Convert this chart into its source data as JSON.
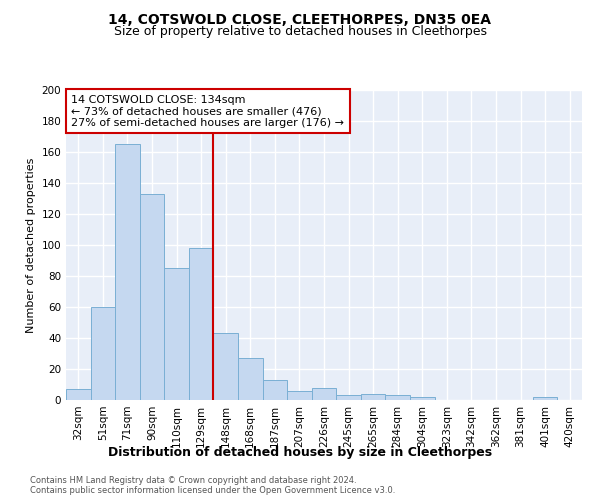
{
  "title": "14, COTSWOLD CLOSE, CLEETHORPES, DN35 0EA",
  "subtitle": "Size of property relative to detached houses in Cleethorpes",
  "xlabel": "Distribution of detached houses by size in Cleethorpes",
  "ylabel": "Number of detached properties",
  "categories": [
    "32sqm",
    "51sqm",
    "71sqm",
    "90sqm",
    "110sqm",
    "129sqm",
    "148sqm",
    "168sqm",
    "187sqm",
    "207sqm",
    "226sqm",
    "245sqm",
    "265sqm",
    "284sqm",
    "304sqm",
    "323sqm",
    "342sqm",
    "362sqm",
    "381sqm",
    "401sqm",
    "420sqm"
  ],
  "values": [
    7,
    60,
    165,
    133,
    85,
    98,
    43,
    27,
    13,
    6,
    8,
    3,
    4,
    3,
    2,
    0,
    0,
    0,
    0,
    2,
    0
  ],
  "bar_color": "#c5d8f0",
  "bar_edge_color": "#7aafd4",
  "background_color": "#e8eef8",
  "grid_color": "#ffffff",
  "annotation_line1": "14 COTSWOLD CLOSE: 134sqm",
  "annotation_line2": "← 73% of detached houses are smaller (476)",
  "annotation_line3": "27% of semi-detached houses are larger (176) →",
  "annotation_box_color": "#ffffff",
  "annotation_box_edge_color": "#cc0000",
  "vline_x": 5.5,
  "vline_color": "#cc0000",
  "ylim": [
    0,
    200
  ],
  "yticks": [
    0,
    20,
    40,
    60,
    80,
    100,
    120,
    140,
    160,
    180,
    200
  ],
  "footer": "Contains HM Land Registry data © Crown copyright and database right 2024.\nContains public sector information licensed under the Open Government Licence v3.0.",
  "title_fontsize": 10,
  "subtitle_fontsize": 9,
  "tick_fontsize": 7.5,
  "ylabel_fontsize": 8,
  "xlabel_fontsize": 9
}
